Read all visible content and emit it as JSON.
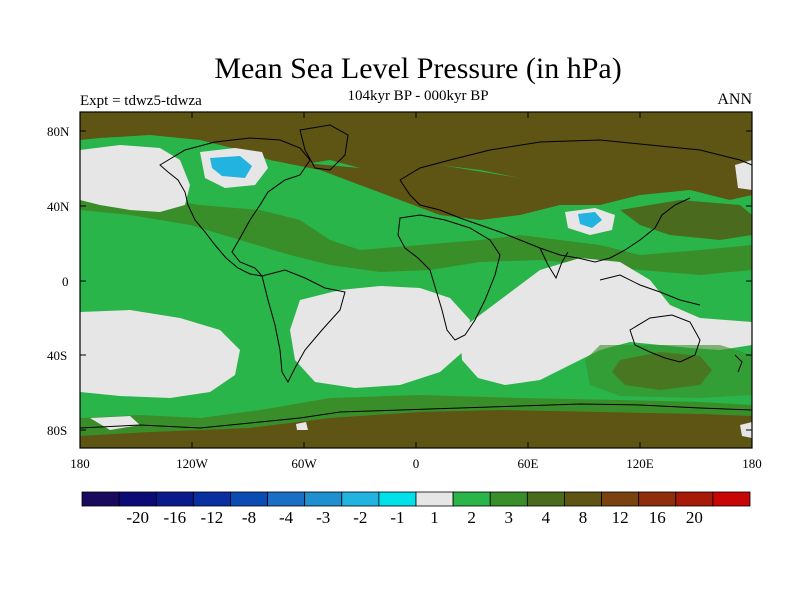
{
  "title": "Mean Sea Level Pressure (in hPa)",
  "subtitle": "104kyr BP - 000kyr BP",
  "expt_label": "Expt = tdwz5-tdwza",
  "season": "ANN",
  "lat_labels": [
    "80N",
    "40N",
    "0",
    "40S",
    "80S"
  ],
  "lon_labels": [
    "180",
    "120W",
    "60W",
    "0",
    "60E",
    "120E",
    "180"
  ],
  "colorbar": {
    "colors": [
      "#1a0a5e",
      "#0b0b78",
      "#0a1a8c",
      "#0a2fa0",
      "#0a4bb4",
      "#1a6fc4",
      "#1e90d0",
      "#22b3e0",
      "#00e0e8",
      "#e6e6e6",
      "#2ab54a",
      "#3a8e2a",
      "#4a6a1e",
      "#5e5414",
      "#7a4210",
      "#8e2e0c",
      "#a81a08",
      "#c80606"
    ],
    "labels": [
      "-20",
      "-16",
      "-12",
      "-8",
      "-4",
      "-3",
      "-2",
      "-1",
      "1",
      "2",
      "3",
      "4",
      "8",
      "12",
      "16",
      "20"
    ]
  },
  "map_colors": {
    "ocean_base": "#2ab54a",
    "light": "#e6e6e6",
    "green": "#3a8e2a",
    "olive": "#4a6a1e",
    "brown": "#5e5414",
    "cyan": "#22b3e0"
  }
}
